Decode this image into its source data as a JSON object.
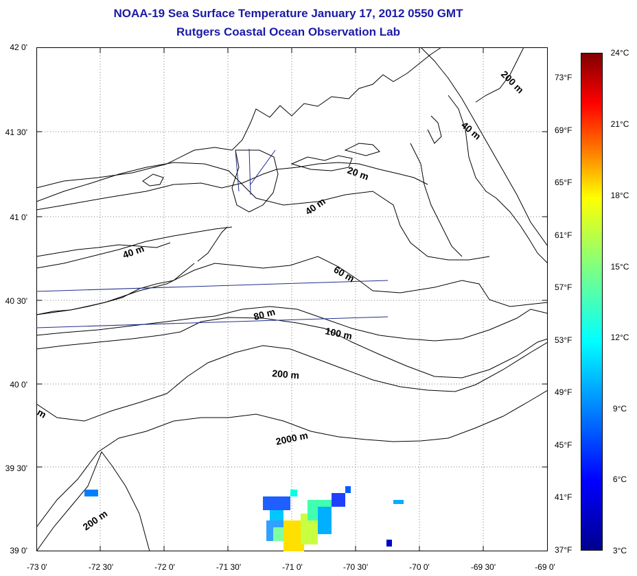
{
  "header": {
    "title": "NOAA-19 Sea Surface Temperature January 17, 2012 0550 GMT",
    "subtitle": "Rutgers Coastal Ocean Observation Lab"
  },
  "axes": {
    "lat_labels": [
      "42 0'",
      "41 30'",
      "41 0'",
      "40 30'",
      "40 0'",
      "39 30'",
      "39 0'"
    ],
    "lon_labels": [
      "-73 0'",
      "-72 30'",
      "-72 0'",
      "-71 30'",
      "-71 0'",
      "-70 30'",
      "-70 0'",
      "-69 30'",
      "-69 0'"
    ],
    "lat_range": [
      39.0,
      42.0
    ],
    "lon_range": [
      -73.0,
      -69.0
    ],
    "grid": "dotted"
  },
  "fahrenheit_labels": [
    "73°F",
    "69°F",
    "65°F",
    "61°F",
    "57°F",
    "53°F",
    "49°F",
    "45°F",
    "41°F",
    "37°F"
  ],
  "colorbar": {
    "labels": [
      "24°C",
      "21°C",
      "18°C",
      "15°C",
      "12°C",
      "9°C",
      "6°C",
      "3°C"
    ],
    "range_c": [
      3,
      24
    ],
    "colors": [
      "#00008f",
      "#0000ff",
      "#0080ff",
      "#00ffff",
      "#80ff80",
      "#ffff00",
      "#ff8000",
      "#ff0000",
      "#800000"
    ]
  },
  "contours": {
    "labels": [
      "200 m",
      "40 m",
      "20 m",
      "40 m",
      "40 m",
      "60 m",
      "80 m",
      "100 m",
      "200 m",
      "2000 m",
      "m",
      "200 m"
    ]
  }
}
